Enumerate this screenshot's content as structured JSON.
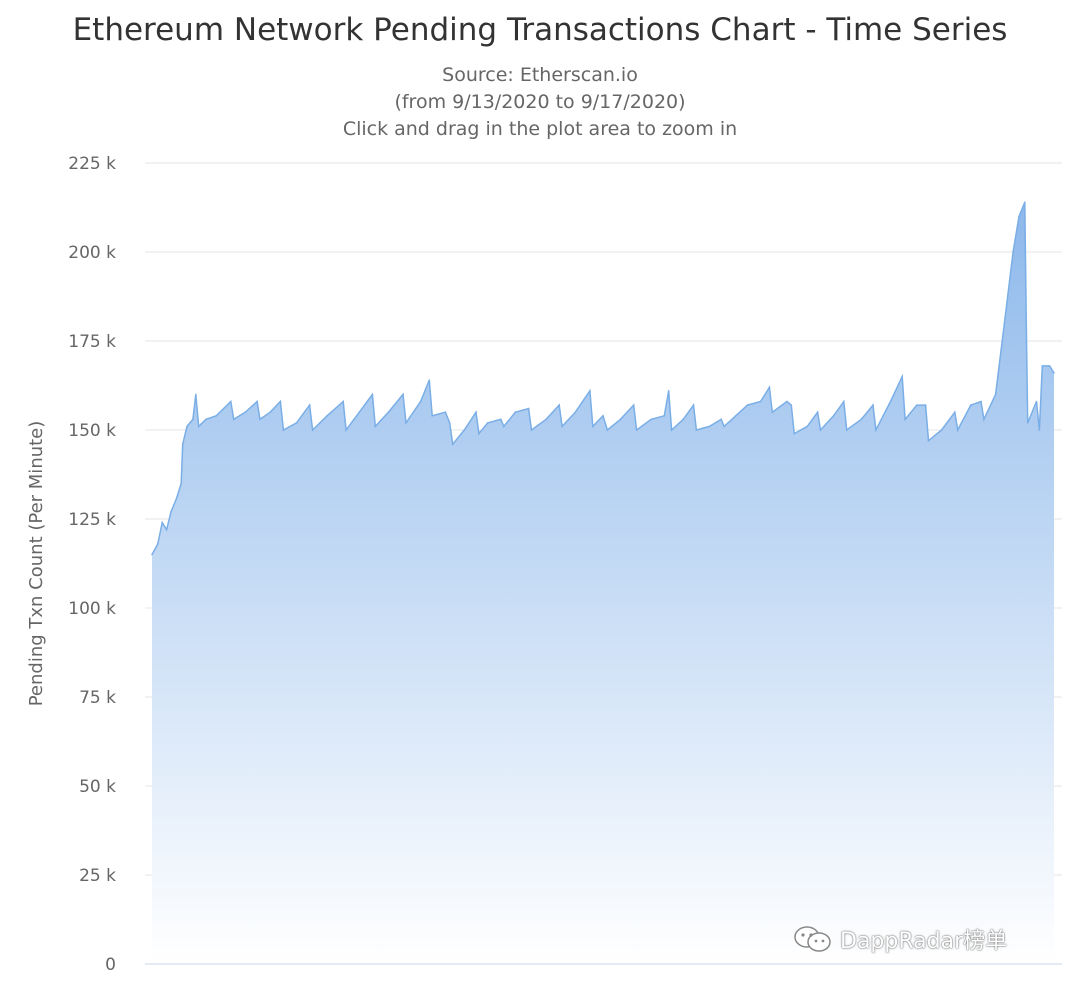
{
  "title": "Ethereum Network Pending Transactions Chart - Time Series",
  "subtitles": [
    "Source: Etherscan.io",
    "(from 9/13/2020 to 9/17/2020)",
    "Click and drag in the plot area to zoom in"
  ],
  "watermark": "DappRadar榜单",
  "colors": {
    "area_top": "#8db8eb",
    "area_bottom": "#ffffff",
    "line": "#7aaee6",
    "grid": "#e6e6e6"
  },
  "chart_data": {
    "type": "area",
    "title": "Ethereum Network Pending Transactions Chart - Time Series",
    "ylabel": "Pending Txn Count (Per Minute)",
    "xlabel": "",
    "xlim": [
      "2020-09-13T00:00",
      "2020-09-17T12:00"
    ],
    "ylim": [
      0,
      225000
    ],
    "y_ticks": [
      0,
      25000,
      50000,
      75000,
      100000,
      125000,
      150000,
      175000,
      200000,
      225000
    ],
    "y_tick_labels": [
      "0",
      "25 k",
      "50 k",
      "75 k",
      "100 k",
      "125 k",
      "150 k",
      "175 k",
      "200 k",
      "225 k"
    ],
    "grid": true,
    "legend": "none",
    "series": [
      {
        "points": [
          [
            "2020-09-13T00:00",
            115000
          ],
          [
            "2020-09-13T00:40",
            118000
          ],
          [
            "2020-09-13T01:10",
            124000
          ],
          [
            "2020-09-13T01:40",
            122000
          ],
          [
            "2020-09-13T02:10",
            127000
          ],
          [
            "2020-09-13T02:50",
            131000
          ],
          [
            "2020-09-13T03:20",
            135000
          ],
          [
            "2020-09-13T03:30",
            146000
          ],
          [
            "2020-09-13T04:00",
            151000
          ],
          [
            "2020-09-13T04:40",
            153000
          ],
          [
            "2020-09-13T05:00",
            160000
          ],
          [
            "2020-09-13T05:20",
            151000
          ],
          [
            "2020-09-13T06:10",
            153000
          ],
          [
            "2020-09-13T07:20",
            154000
          ],
          [
            "2020-09-13T09:00",
            158000
          ],
          [
            "2020-09-13T09:20",
            153000
          ],
          [
            "2020-09-13T10:40",
            155000
          ],
          [
            "2020-09-13T12:00",
            158000
          ],
          [
            "2020-09-13T12:20",
            153000
          ],
          [
            "2020-09-13T13:30",
            155000
          ],
          [
            "2020-09-13T14:40",
            158000
          ],
          [
            "2020-09-13T15:00",
            150000
          ],
          [
            "2020-09-13T16:30",
            152000
          ],
          [
            "2020-09-13T18:00",
            157000
          ],
          [
            "2020-09-13T18:20",
            150000
          ],
          [
            "2020-09-13T20:00",
            154000
          ],
          [
            "2020-09-13T21:50",
            158000
          ],
          [
            "2020-09-13T22:10",
            150000
          ],
          [
            "2020-09-13T23:40",
            155000
          ],
          [
            "2020-09-14T01:10",
            160000
          ],
          [
            "2020-09-14T01:30",
            151000
          ],
          [
            "2020-09-14T03:00",
            155000
          ],
          [
            "2020-09-14T04:40",
            160000
          ],
          [
            "2020-09-14T05:00",
            152000
          ],
          [
            "2020-09-14T06:40",
            158000
          ],
          [
            "2020-09-14T07:40",
            164000
          ],
          [
            "2020-09-14T08:00",
            154000
          ],
          [
            "2020-09-14T09:30",
            155000
          ],
          [
            "2020-09-14T10:00",
            152000
          ],
          [
            "2020-09-14T10:20",
            146000
          ],
          [
            "2020-09-14T11:40",
            150000
          ],
          [
            "2020-09-14T13:00",
            155000
          ],
          [
            "2020-09-14T13:20",
            149000
          ],
          [
            "2020-09-14T14:20",
            152000
          ],
          [
            "2020-09-14T15:50",
            153000
          ],
          [
            "2020-09-14T16:10",
            151000
          ],
          [
            "2020-09-14T17:30",
            155000
          ],
          [
            "2020-09-14T19:00",
            156000
          ],
          [
            "2020-09-14T19:20",
            150000
          ],
          [
            "2020-09-14T21:00",
            153000
          ],
          [
            "2020-09-14T22:30",
            157000
          ],
          [
            "2020-09-14T22:50",
            151000
          ],
          [
            "2020-09-15T00:20",
            155000
          ],
          [
            "2020-09-15T02:00",
            161000
          ],
          [
            "2020-09-15T02:20",
            151000
          ],
          [
            "2020-09-15T03:30",
            154000
          ],
          [
            "2020-09-15T04:00",
            150000
          ],
          [
            "2020-09-15T05:30",
            153000
          ],
          [
            "2020-09-15T07:00",
            157000
          ],
          [
            "2020-09-15T07:20",
            150000
          ],
          [
            "2020-09-15T09:00",
            153000
          ],
          [
            "2020-09-15T10:30",
            154000
          ],
          [
            "2020-09-15T11:00",
            161000
          ],
          [
            "2020-09-15T11:20",
            150000
          ],
          [
            "2020-09-15T12:40",
            153000
          ],
          [
            "2020-09-15T13:50",
            157000
          ],
          [
            "2020-09-15T14:10",
            150000
          ],
          [
            "2020-09-15T15:40",
            151000
          ],
          [
            "2020-09-15T17:00",
            153000
          ],
          [
            "2020-09-15T17:20",
            151000
          ],
          [
            "2020-09-15T18:40",
            154000
          ],
          [
            "2020-09-15T20:00",
            157000
          ],
          [
            "2020-09-15T21:30",
            158000
          ],
          [
            "2020-09-15T22:30",
            162000
          ],
          [
            "2020-09-15T22:50",
            155000
          ],
          [
            "2020-09-16T00:30",
            158000
          ],
          [
            "2020-09-16T01:00",
            157000
          ],
          [
            "2020-09-16T01:20",
            149000
          ],
          [
            "2020-09-16T02:50",
            151000
          ],
          [
            "2020-09-16T04:00",
            155000
          ],
          [
            "2020-09-16T04:20",
            150000
          ],
          [
            "2020-09-16T05:50",
            154000
          ],
          [
            "2020-09-16T07:00",
            158000
          ],
          [
            "2020-09-16T07:20",
            150000
          ],
          [
            "2020-09-16T09:00",
            153000
          ],
          [
            "2020-09-16T10:20",
            157000
          ],
          [
            "2020-09-16T10:40",
            150000
          ],
          [
            "2020-09-16T12:20",
            158000
          ],
          [
            "2020-09-16T13:40",
            165000
          ],
          [
            "2020-09-16T14:00",
            153000
          ],
          [
            "2020-09-16T15:20",
            157000
          ],
          [
            "2020-09-16T16:20",
            157000
          ],
          [
            "2020-09-16T16:40",
            147000
          ],
          [
            "2020-09-16T18:10",
            150000
          ],
          [
            "2020-09-16T19:40",
            155000
          ],
          [
            "2020-09-16T20:00",
            150000
          ],
          [
            "2020-09-16T21:30",
            157000
          ],
          [
            "2020-09-16T22:40",
            158000
          ],
          [
            "2020-09-16T23:00",
            153000
          ],
          [
            "2020-09-17T00:20",
            160000
          ],
          [
            "2020-09-17T01:20",
            180000
          ],
          [
            "2020-09-17T02:20",
            200000
          ],
          [
            "2020-09-17T03:00",
            210000
          ],
          [
            "2020-09-17T03:40",
            214000
          ],
          [
            "2020-09-17T03:50",
            180000
          ],
          [
            "2020-09-17T04:00",
            152000
          ],
          [
            "2020-09-17T05:00",
            158000
          ],
          [
            "2020-09-17T05:20",
            150000
          ],
          [
            "2020-09-17T05:40",
            168000
          ],
          [
            "2020-09-17T06:30",
            168000
          ],
          [
            "2020-09-17T07:00",
            166000
          ]
        ]
      }
    ]
  }
}
